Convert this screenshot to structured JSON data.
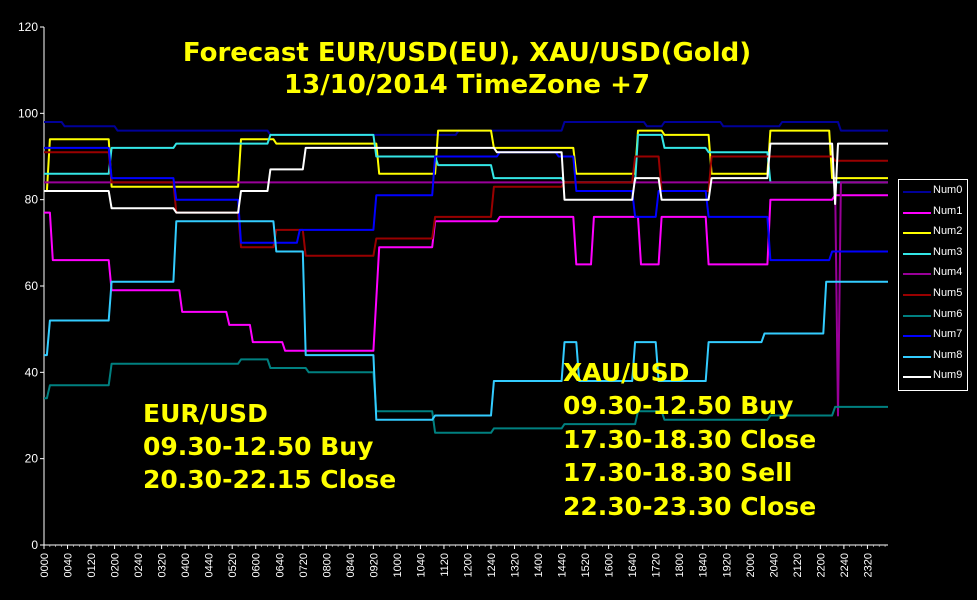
{
  "chart_data": {
    "type": "line",
    "title_lines": [
      "Forecast EUR/USD(EU), XAU/USD(Gold)",
      "13/10/2014 TimeZone +7"
    ],
    "ylim": [
      0,
      120
    ],
    "yticks": [
      0,
      20,
      40,
      60,
      80,
      100,
      120
    ],
    "xticks": [
      "0000",
      "0040",
      "0120",
      "0200",
      "0240",
      "0320",
      "0400",
      "0440",
      "0520",
      "0600",
      "0640",
      "0720",
      "0800",
      "0840",
      "0920",
      "1000",
      "1040",
      "1120",
      "1200",
      "1240",
      "1320",
      "1400",
      "1440",
      "1520",
      "1600",
      "1640",
      "1720",
      "1800",
      "1840",
      "1920",
      "2000",
      "2040",
      "2120",
      "2200",
      "2240",
      "2320"
    ],
    "x_minutes": [
      0,
      1435
    ],
    "grid": false,
    "legend_position": "right",
    "annotations": {
      "eur": [
        "EUR/USD",
        "09.30-12.50 Buy",
        "20.30-22.15 Close"
      ],
      "xau": [
        "XAU/USD",
        "09.30-12.50 Buy",
        "17.30-18.30 Close",
        "17.30-18.30 Sell",
        "22.30-23.30 Close"
      ]
    },
    "series": [
      {
        "name": "Num0",
        "color": "#000099",
        "points": [
          [
            0,
            98
          ],
          [
            30,
            98
          ],
          [
            35,
            97
          ],
          [
            120,
            97
          ],
          [
            125,
            96
          ],
          [
            380,
            96
          ],
          [
            385,
            95
          ],
          [
            480,
            95
          ],
          [
            485,
            95
          ],
          [
            700,
            95
          ],
          [
            705,
            96
          ],
          [
            880,
            96
          ],
          [
            885,
            98
          ],
          [
            1020,
            98
          ],
          [
            1025,
            97
          ],
          [
            1050,
            97
          ],
          [
            1055,
            98
          ],
          [
            1150,
            98
          ],
          [
            1155,
            97
          ],
          [
            1250,
            97
          ],
          [
            1255,
            98
          ],
          [
            1350,
            98
          ],
          [
            1355,
            96
          ],
          [
            1435,
            96
          ]
        ]
      },
      {
        "name": "Num1",
        "color": "#ff00ff",
        "points": [
          [
            0,
            77
          ],
          [
            10,
            77
          ],
          [
            15,
            66
          ],
          [
            110,
            66
          ],
          [
            115,
            59
          ],
          [
            230,
            59
          ],
          [
            235,
            54
          ],
          [
            310,
            54
          ],
          [
            315,
            51
          ],
          [
            350,
            51
          ],
          [
            355,
            47
          ],
          [
            405,
            47
          ],
          [
            410,
            45
          ],
          [
            560,
            45
          ],
          [
            570,
            69
          ],
          [
            660,
            69
          ],
          [
            665,
            75
          ],
          [
            770,
            75
          ],
          [
            775,
            76
          ],
          [
            900,
            76
          ],
          [
            905,
            65
          ],
          [
            930,
            65
          ],
          [
            935,
            76
          ],
          [
            1010,
            76
          ],
          [
            1015,
            65
          ],
          [
            1045,
            65
          ],
          [
            1050,
            76
          ],
          [
            1125,
            76
          ],
          [
            1130,
            65
          ],
          [
            1230,
            65
          ],
          [
            1235,
            80
          ],
          [
            1340,
            80
          ],
          [
            1345,
            81
          ],
          [
            1435,
            81
          ]
        ]
      },
      {
        "name": "Num2",
        "color": "#ffff00",
        "points": [
          [
            0,
            82
          ],
          [
            5,
            82
          ],
          [
            10,
            94
          ],
          [
            110,
            94
          ],
          [
            115,
            83
          ],
          [
            330,
            83
          ],
          [
            335,
            94
          ],
          [
            390,
            94
          ],
          [
            395,
            93
          ],
          [
            565,
            93
          ],
          [
            570,
            86
          ],
          [
            665,
            86
          ],
          [
            670,
            96
          ],
          [
            760,
            96
          ],
          [
            765,
            92
          ],
          [
            900,
            92
          ],
          [
            905,
            86
          ],
          [
            1005,
            86
          ],
          [
            1010,
            96
          ],
          [
            1050,
            96
          ],
          [
            1055,
            95
          ],
          [
            1130,
            95
          ],
          [
            1135,
            86
          ],
          [
            1230,
            86
          ],
          [
            1235,
            96
          ],
          [
            1335,
            96
          ],
          [
            1340,
            85
          ],
          [
            1435,
            85
          ]
        ]
      },
      {
        "name": "Num3",
        "color": "#33e6e6",
        "points": [
          [
            0,
            86
          ],
          [
            5,
            86
          ],
          [
            10,
            86
          ],
          [
            110,
            86
          ],
          [
            115,
            92
          ],
          [
            220,
            92
          ],
          [
            225,
            93
          ],
          [
            380,
            93
          ],
          [
            385,
            95
          ],
          [
            560,
            95
          ],
          [
            565,
            90
          ],
          [
            665,
            90
          ],
          [
            670,
            88
          ],
          [
            760,
            88
          ],
          [
            765,
            85
          ],
          [
            880,
            85
          ],
          [
            885,
            84
          ],
          [
            1005,
            84
          ],
          [
            1010,
            95
          ],
          [
            1050,
            95
          ],
          [
            1055,
            92
          ],
          [
            1125,
            92
          ],
          [
            1130,
            91
          ],
          [
            1230,
            91
          ],
          [
            1235,
            84
          ],
          [
            1435,
            84
          ]
        ]
      },
      {
        "name": "Num4",
        "color": "#990099",
        "points": [
          [
            0,
            84
          ],
          [
            1345,
            84
          ],
          [
            1350,
            30
          ],
          [
            1355,
            84
          ],
          [
            1435,
            84
          ]
        ]
      },
      {
        "name": "Num5",
        "color": "#990000",
        "points": [
          [
            0,
            91
          ],
          [
            110,
            91
          ],
          [
            115,
            84
          ],
          [
            220,
            84
          ],
          [
            225,
            77
          ],
          [
            330,
            77
          ],
          [
            335,
            69
          ],
          [
            390,
            69
          ],
          [
            395,
            73
          ],
          [
            440,
            73
          ],
          [
            445,
            67
          ],
          [
            560,
            67
          ],
          [
            565,
            71
          ],
          [
            660,
            71
          ],
          [
            665,
            76
          ],
          [
            760,
            76
          ],
          [
            765,
            83
          ],
          [
            880,
            83
          ],
          [
            885,
            84
          ],
          [
            1000,
            84
          ],
          [
            1005,
            90
          ],
          [
            1045,
            90
          ],
          [
            1050,
            82
          ],
          [
            1130,
            82
          ],
          [
            1135,
            90
          ],
          [
            1340,
            90
          ],
          [
            1345,
            89
          ],
          [
            1435,
            89
          ]
        ]
      },
      {
        "name": "Num6",
        "color": "#008080",
        "points": [
          [
            0,
            34
          ],
          [
            5,
            34
          ],
          [
            10,
            37
          ],
          [
            110,
            37
          ],
          [
            115,
            42
          ],
          [
            330,
            42
          ],
          [
            335,
            43
          ],
          [
            380,
            43
          ],
          [
            385,
            41
          ],
          [
            445,
            41
          ],
          [
            450,
            40
          ],
          [
            560,
            40
          ],
          [
            565,
            31
          ],
          [
            660,
            31
          ],
          [
            665,
            26
          ],
          [
            760,
            26
          ],
          [
            765,
            27
          ],
          [
            880,
            27
          ],
          [
            885,
            28
          ],
          [
            1005,
            28
          ],
          [
            1010,
            31
          ],
          [
            1050,
            31
          ],
          [
            1055,
            29
          ],
          [
            1230,
            29
          ],
          [
            1235,
            30
          ],
          [
            1340,
            30
          ],
          [
            1345,
            32
          ],
          [
            1435,
            32
          ]
        ]
      },
      {
        "name": "Num7",
        "color": "#0000ff",
        "points": [
          [
            0,
            92
          ],
          [
            110,
            92
          ],
          [
            115,
            85
          ],
          [
            220,
            85
          ],
          [
            225,
            80
          ],
          [
            330,
            80
          ],
          [
            335,
            70
          ],
          [
            430,
            70
          ],
          [
            435,
            73
          ],
          [
            560,
            73
          ],
          [
            565,
            81
          ],
          [
            660,
            81
          ],
          [
            665,
            90
          ],
          [
            770,
            90
          ],
          [
            775,
            91
          ],
          [
            870,
            91
          ],
          [
            875,
            90
          ],
          [
            900,
            90
          ],
          [
            905,
            82
          ],
          [
            1000,
            82
          ],
          [
            1005,
            76
          ],
          [
            1040,
            76
          ],
          [
            1045,
            82
          ],
          [
            1125,
            82
          ],
          [
            1130,
            76
          ],
          [
            1230,
            76
          ],
          [
            1235,
            66
          ],
          [
            1335,
            66
          ],
          [
            1340,
            68
          ],
          [
            1435,
            68
          ]
        ]
      },
      {
        "name": "Num8",
        "color": "#33ccff",
        "points": [
          [
            0,
            44
          ],
          [
            5,
            44
          ],
          [
            10,
            52
          ],
          [
            110,
            52
          ],
          [
            115,
            61
          ],
          [
            220,
            61
          ],
          [
            225,
            75
          ],
          [
            390,
            75
          ],
          [
            395,
            68
          ],
          [
            440,
            68
          ],
          [
            445,
            44
          ],
          [
            560,
            44
          ],
          [
            565,
            29
          ],
          [
            660,
            29
          ],
          [
            665,
            30
          ],
          [
            760,
            30
          ],
          [
            765,
            38
          ],
          [
            880,
            38
          ],
          [
            885,
            47
          ],
          [
            905,
            47
          ],
          [
            910,
            38
          ],
          [
            1000,
            38
          ],
          [
            1005,
            47
          ],
          [
            1040,
            47
          ],
          [
            1045,
            38
          ],
          [
            1125,
            38
          ],
          [
            1130,
            47
          ],
          [
            1220,
            47
          ],
          [
            1225,
            49
          ],
          [
            1325,
            49
          ],
          [
            1330,
            61
          ],
          [
            1435,
            61
          ]
        ]
      },
      {
        "name": "Num9",
        "color": "#ffffff",
        "points": [
          [
            0,
            82
          ],
          [
            110,
            82
          ],
          [
            115,
            78
          ],
          [
            220,
            78
          ],
          [
            225,
            77
          ],
          [
            330,
            77
          ],
          [
            335,
            82
          ],
          [
            380,
            82
          ],
          [
            385,
            87
          ],
          [
            440,
            87
          ],
          [
            445,
            92
          ],
          [
            660,
            92
          ],
          [
            665,
            92
          ],
          [
            765,
            92
          ],
          [
            770,
            91
          ],
          [
            880,
            91
          ],
          [
            885,
            80
          ],
          [
            930,
            80
          ],
          [
            935,
            80
          ],
          [
            1000,
            80
          ],
          [
            1005,
            85
          ],
          [
            1045,
            85
          ],
          [
            1050,
            80
          ],
          [
            1130,
            80
          ],
          [
            1135,
            85
          ],
          [
            1230,
            85
          ],
          [
            1235,
            93
          ],
          [
            1340,
            93
          ],
          [
            1345,
            79
          ],
          [
            1350,
            93
          ],
          [
            1435,
            93
          ]
        ]
      }
    ]
  }
}
